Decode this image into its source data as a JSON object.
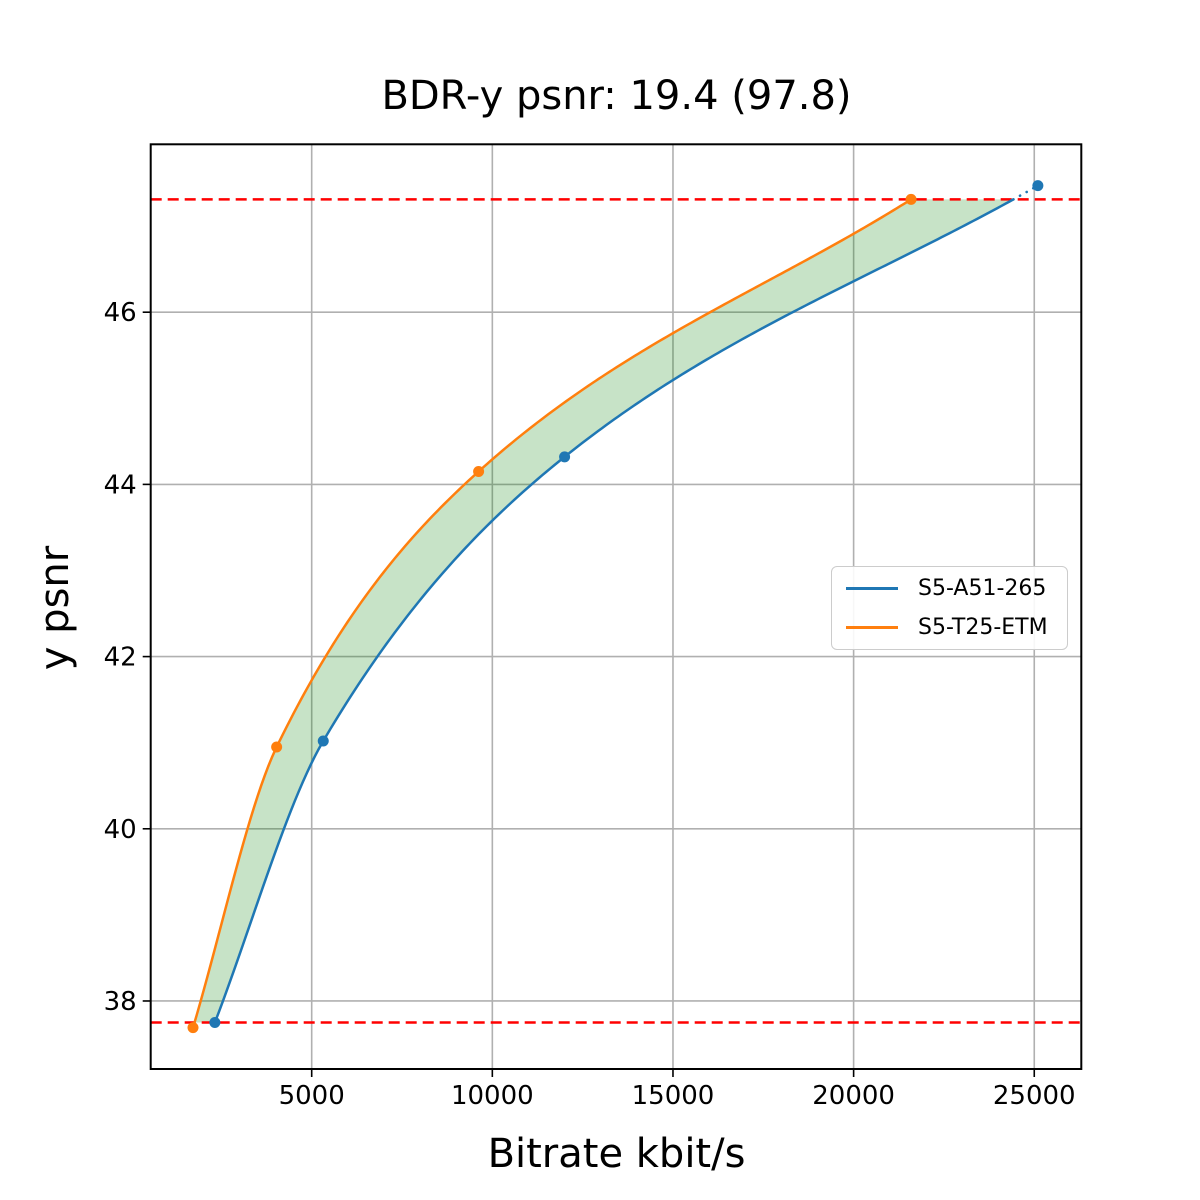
{
  "title": "BDR-y psnr: 19.4 (97.8)",
  "chart_data": {
    "type": "line",
    "title": "BDR-y psnr: 19.4 (97.8)",
    "xlabel": "Bitrate kbit/s",
    "ylabel": "y psnr",
    "xlim": [
      544,
      26302
    ],
    "ylim": [
      37.21,
      47.95
    ],
    "x_ticks": [
      5000,
      10000,
      15000,
      20000,
      25000
    ],
    "y_ticks": [
      38,
      40,
      42,
      44,
      46
    ],
    "grid": true,
    "legend_position": "center-right",
    "series": [
      {
        "name": "S5-A51-265",
        "color": "#1f77b4",
        "marker": "circle",
        "x": [
          2320,
          5320,
          12000,
          25100
        ],
        "y": [
          37.75,
          41.02,
          44.32,
          47.47
        ],
        "note": "solid up to overlap upper bound, dotted beyond"
      },
      {
        "name": "S5-T25-ETM",
        "color": "#ff7f0e",
        "marker": "circle",
        "x": [
          1715,
          4030,
          9620,
          21590
        ],
        "y": [
          37.69,
          40.95,
          44.15,
          47.31
        ]
      }
    ],
    "hlines": [
      {
        "name": "overlap-upper-bound",
        "y": 47.31,
        "color": "#ff0000",
        "style": "dashed"
      },
      {
        "name": "overlap-lower-bound",
        "y": 37.75,
        "color": "#ff0000",
        "style": "dashed"
      }
    ],
    "shaded_region": {
      "between": [
        "S5-T25-ETM",
        "S5-A51-265"
      ],
      "y_range": [
        37.75,
        47.31
      ],
      "color": "#008000",
      "opacity": 0.22
    },
    "style": {
      "grid_color": "#b0b0b0",
      "spine_color": "#000000",
      "background": "#ffffff"
    }
  }
}
